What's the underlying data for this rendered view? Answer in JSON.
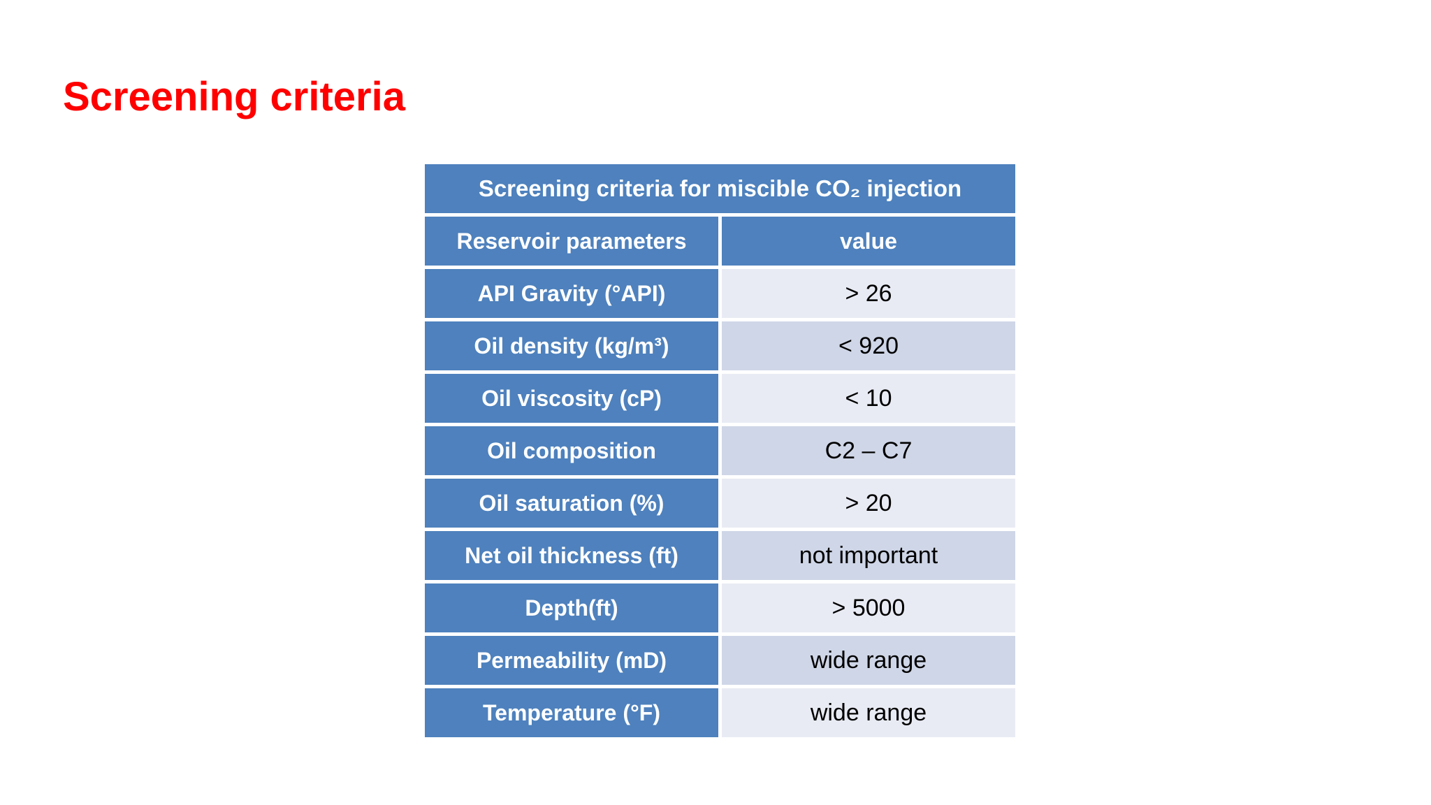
{
  "slide": {
    "title": "Screening criteria",
    "title_color": "#fe0000",
    "background_color": "#ffffff"
  },
  "table": {
    "title": "Screening criteria for miscible CO₂ injection",
    "columns": [
      "Reservoir parameters",
      "value"
    ],
    "rows": [
      {
        "parameter": "API Gravity (°API)",
        "value": "> 26"
      },
      {
        "parameter": "Oil density (kg/m³)",
        "value": "< 920"
      },
      {
        "parameter": "Oil viscosity (cP)",
        "value": "< 10"
      },
      {
        "parameter": "Oil composition",
        "value": "C2 – C7"
      },
      {
        "parameter": "Oil saturation (%)",
        "value": "> 20"
      },
      {
        "parameter": "Net oil thickness (ft)",
        "value": "not important"
      },
      {
        "parameter": "Depth(ft)",
        "value": "> 5000"
      },
      {
        "parameter": "Permeability (mD)",
        "value": "wide range"
      },
      {
        "parameter": "Temperature (°F)",
        "value": "wide range"
      }
    ],
    "colors": {
      "header_bg": "#4e81bd",
      "header_text": "#ffffff",
      "band_light": "#e9ebf4",
      "band_dark": "#cfd6e7",
      "value_text": "#000000",
      "grid_gap": "#ffffff"
    }
  }
}
